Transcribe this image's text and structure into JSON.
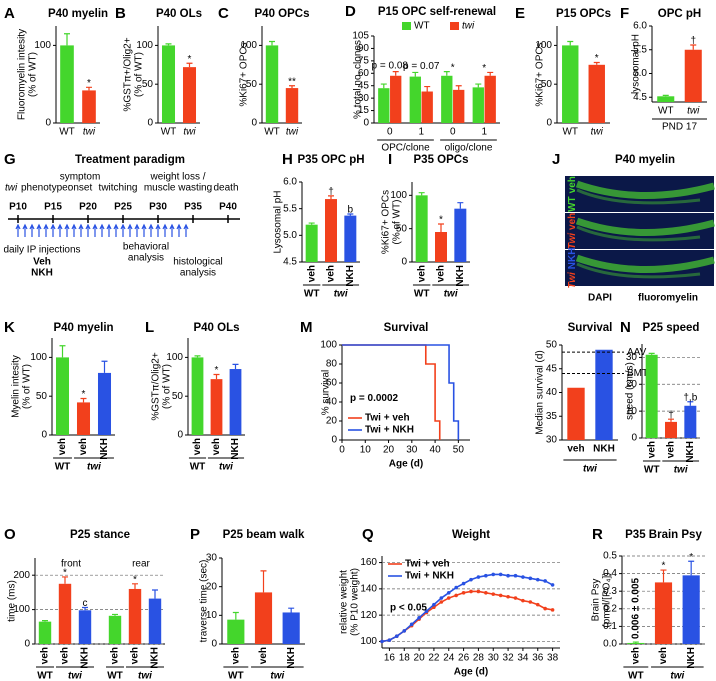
{
  "chart_data": [
    {
      "panel": "A",
      "type": "bar",
      "title": "P40 myelin",
      "ylabel": [
        "Fluoromyelin intesity",
        "(% of WT)"
      ],
      "categories": [
        "WT",
        "twi"
      ],
      "values": [
        100,
        42
      ],
      "errors": [
        15,
        4
      ],
      "colors": [
        "#44d62c",
        "#f2401c"
      ],
      "ylim": [
        0,
        125
      ],
      "yticks": [
        0,
        100
      ],
      "markers": [
        null,
        "*"
      ]
    },
    {
      "panel": "B",
      "type": "bar",
      "title": "P40 OLs",
      "ylabel": [
        "%GSTπ+/Olig2+",
        "(% of WT)"
      ],
      "categories": [
        "WT",
        "twi"
      ],
      "values": [
        100,
        72
      ],
      "errors": [
        2,
        5
      ],
      "colors": [
        "#44d62c",
        "#f2401c"
      ],
      "ylim": [
        0,
        125
      ],
      "yticks": [
        0,
        50,
        100
      ],
      "markers": [
        null,
        "*"
      ]
    },
    {
      "panel": "C",
      "type": "bar",
      "title": "P40 OPCs",
      "ylabel": [
        "%Ki67+ OPCs"
      ],
      "categories": [
        "WT",
        "twi"
      ],
      "values": [
        100,
        45
      ],
      "errors": [
        5,
        3
      ],
      "colors": [
        "#44d62c",
        "#f2401c"
      ],
      "ylim": [
        0,
        125
      ],
      "yticks": [
        0,
        50,
        100
      ],
      "markers": [
        null,
        "**"
      ]
    },
    {
      "panel": "D",
      "type": "bar",
      "title": "P15 OPC self-renewal",
      "ylabel": [
        "% total no. clones"
      ],
      "categories": [
        "0",
        "1",
        "0",
        "1"
      ],
      "supergroups": [
        "OPC/clone",
        "oligo/clone"
      ],
      "series": [
        {
          "name": "WT",
          "color": "#44d62c",
          "values": [
            42,
            56,
            57,
            43
          ],
          "errors": [
            5,
            5,
            5,
            4
          ]
        },
        {
          "name": "twi",
          "color": "#f2401c",
          "values": [
            57,
            38,
            40,
            57
          ],
          "errors": [
            5,
            6,
            5,
            4
          ]
        }
      ],
      "ylim": [
        0,
        105
      ],
      "yticks": [
        0,
        15,
        30,
        45,
        60,
        75,
        90,
        105
      ],
      "markers": [
        "p = 0.08",
        "p = 0.07",
        "*",
        "*"
      ]
    },
    {
      "panel": "E",
      "type": "bar",
      "title": "P15 OPCs",
      "ylabel": [
        "%Ki67+ OPCs"
      ],
      "categories": [
        "WT",
        "twi"
      ],
      "values": [
        100,
        75
      ],
      "errors": [
        5,
        3
      ],
      "colors": [
        "#44d62c",
        "#f2401c"
      ],
      "ylim": [
        0,
        125
      ],
      "yticks": [
        0,
        50,
        100
      ],
      "markers": [
        null,
        "*"
      ]
    },
    {
      "panel": "F",
      "type": "bar",
      "title": "OPC pH",
      "ylabel": [
        "lysosomal pH"
      ],
      "xlabel": "PND 17",
      "categories": [
        "WT",
        "twi"
      ],
      "values": [
        4.52,
        5.5
      ],
      "errors": [
        0.02,
        0.1
      ],
      "colors": [
        "#44d62c",
        "#f2401c"
      ],
      "ylim": [
        4.4,
        6.0
      ],
      "yticks": [
        4.5,
        {
          "value": 5,
          "label": "5.0"
        },
        5.5,
        {
          "value": 6,
          "label": "6.0"
        }
      ],
      "markers": [
        null,
        "†"
      ]
    },
    {
      "panel": "H",
      "type": "bar",
      "title": "P35 OPC pH",
      "ylabel": [
        "Lysosomal pH"
      ],
      "categories": [
        "veh",
        "veh",
        "NKH"
      ],
      "groups": [
        "WT",
        "twi"
      ],
      "values": [
        5.2,
        5.68,
        5.37
      ],
      "errors": [
        0.03,
        0.06,
        0.03
      ],
      "colors": [
        "#44d62c",
        "#f2401c",
        "#2952e3"
      ],
      "ylim": [
        4.5,
        6.0
      ],
      "yticks": [
        4.5,
        {
          "value": 5,
          "label": "5.0"
        },
        5.5,
        {
          "value": 6,
          "label": "6.0"
        }
      ],
      "markers": [
        null,
        "†",
        "b"
      ]
    },
    {
      "panel": "I",
      "type": "bar",
      "title": "P35 OPCs",
      "ylabel": [
        "%Ki67+ OPCs",
        "(% of WT)"
      ],
      "categories": [
        "veh",
        "veh",
        "NKH"
      ],
      "groups": [
        "WT",
        "twi"
      ],
      "values": [
        100,
        45,
        80
      ],
      "errors": [
        4,
        12,
        9
      ],
      "colors": [
        "#44d62c",
        "#f2401c",
        "#2952e3"
      ],
      "ylim": [
        0,
        120
      ],
      "yticks": [
        0,
        50,
        100
      ],
      "markers": [
        null,
        "*",
        null
      ]
    },
    {
      "panel": "K",
      "type": "bar",
      "title": "P40 myelin",
      "ylabel": [
        "Myelin intesity",
        "(% of WT)"
      ],
      "categories": [
        "veh",
        "veh",
        "NKH"
      ],
      "groups": [
        "WT",
        "twi"
      ],
      "values": [
        100,
        42,
        80
      ],
      "errors": [
        15,
        5,
        15
      ],
      "colors": [
        "#44d62c",
        "#f2401c",
        "#2952e3"
      ],
      "ylim": [
        0,
        125
      ],
      "yticks": [
        0,
        50,
        100
      ],
      "markers": [
        null,
        "*",
        null
      ]
    },
    {
      "panel": "L",
      "type": "bar",
      "title": "P40 OLs",
      "ylabel": [
        "%GSTπ/Olig2+",
        "(% of WT)"
      ],
      "categories": [
        "veh",
        "veh",
        "NKH"
      ],
      "groups": [
        "WT",
        "twi"
      ],
      "values": [
        100,
        72,
        85
      ],
      "errors": [
        2,
        6,
        6
      ],
      "colors": [
        "#44d62c",
        "#f2401c",
        "#2952e3"
      ],
      "ylim": [
        0,
        125
      ],
      "yticks": [
        0,
        50,
        100
      ],
      "markers": [
        null,
        "*",
        null
      ]
    },
    {
      "panel": "M",
      "type": "line",
      "title": "Survival",
      "xlabel": "Age (d)",
      "ylabel": [
        "% survival"
      ],
      "xlim": [
        0,
        55
      ],
      "xticks": [
        0,
        10,
        20,
        30,
        40,
        50
      ],
      "ylim": [
        0,
        100
      ],
      "yticks": [
        0,
        20,
        40,
        60,
        80,
        100
      ],
      "legend": "lower left",
      "annotation": "p = 0.0002",
      "series": [
        {
          "name": "Twi + veh",
          "color": "#f2401c",
          "x": [
            0,
            36,
            36,
            40,
            40,
            42,
            42
          ],
          "values": [
            100,
            100,
            80,
            80,
            20,
            20,
            0
          ]
        },
        {
          "name": "Twi + NKH",
          "color": "#2952e3",
          "x": [
            0,
            46,
            46,
            48,
            48,
            50,
            50
          ],
          "values": [
            100,
            100,
            60,
            60,
            20,
            20,
            0
          ]
        }
      ]
    },
    {
      "type": "bar",
      "title": "Survival",
      "ylabel": [
        "Median survival (d)"
      ],
      "categories": [
        "veh",
        "NKH"
      ],
      "groups": [
        "twi"
      ],
      "values": [
        41,
        49
      ],
      "colors": [
        "#f2401c",
        "#2952e3"
      ],
      "ylim": [
        30,
        50
      ],
      "yticks": [
        30,
        35,
        40,
        45,
        50
      ],
      "ref_lines": [
        {
          "label": "AAV",
          "value": 48.5
        },
        {
          "label": "BMT",
          "value": 44
        }
      ]
    },
    {
      "panel": "N",
      "type": "bar",
      "title": "P25 speed",
      "ylabel": [
        "speed (cm/s)"
      ],
      "categories": [
        "veh",
        "veh",
        "NKH"
      ],
      "groups": [
        "WT",
        "twi"
      ],
      "values": [
        31,
        6,
        12
      ],
      "errors": [
        0.5,
        1,
        1.5
      ],
      "colors": [
        "#44d62c",
        "#f2401c",
        "#2952e3"
      ],
      "ylim": [
        0,
        35
      ],
      "yticks": [
        0,
        10,
        20,
        30
      ],
      "grid": true,
      "markers": [
        null,
        "†",
        "†,b"
      ]
    },
    {
      "panel": "O",
      "type": "bar",
      "title": "P25 stance",
      "ylabel": [
        "time (ms)"
      ],
      "subtitles": [
        "front",
        "rear"
      ],
      "categories": [
        "veh",
        "veh",
        "NKH",
        "veh",
        "veh",
        "NKH"
      ],
      "groups": [
        "WT",
        "twi",
        "WT",
        "twi"
      ],
      "values": [
        65,
        175,
        98,
        82,
        160,
        132
      ],
      "errors": [
        3,
        20,
        8,
        4,
        15,
        25
      ],
      "colors": [
        "#44d62c",
        "#f2401c",
        "#2952e3",
        "#44d62c",
        "#f2401c",
        "#2952e3"
      ],
      "ylim": [
        0,
        250
      ],
      "yticks": [
        0,
        100,
        200
      ],
      "grid": true,
      "markers": [
        null,
        "*",
        "c",
        null,
        "*",
        null
      ]
    },
    {
      "panel": "P",
      "type": "bar",
      "title": "P25 beam walk",
      "ylabel": [
        "traverse time (sec)"
      ],
      "categories": [
        "veh",
        "veh",
        "NKH"
      ],
      "groups": [
        "WT",
        "twi"
      ],
      "values": [
        8.5,
        18,
        11
      ],
      "errors": [
        2.5,
        7.5,
        1.5
      ],
      "colors": [
        "#44d62c",
        "#f2401c",
        "#2952e3"
      ],
      "ylim": [
        0,
        30
      ],
      "yticks": [
        0,
        10,
        20,
        30
      ]
    },
    {
      "panel": "Q",
      "type": "line",
      "title": "Weight",
      "xlabel": "Age (d)",
      "ylabel": [
        "relative weight",
        "(% P10 weight)"
      ],
      "xlim": [
        15,
        39
      ],
      "xticks": [
        16,
        18,
        20,
        22,
        24,
        26,
        28,
        30,
        32,
        34,
        36,
        38
      ],
      "ylim": [
        95,
        165
      ],
      "yticks": [
        100,
        120,
        140,
        160
      ],
      "grid": true,
      "legend": "upper left",
      "annotation": "p < 0.05",
      "point_markers": true,
      "series": [
        {
          "name": "Twi + veh",
          "color": "#f2401c",
          "x": [
            15,
            16,
            17,
            18,
            19,
            20,
            21,
            22,
            23,
            24,
            25,
            26,
            27,
            28,
            29,
            30,
            31,
            32,
            33,
            34,
            35,
            36,
            37,
            38
          ],
          "values": [
            100,
            101,
            104,
            108,
            112,
            117,
            122,
            126,
            130,
            133,
            135,
            137,
            138,
            138,
            137,
            136,
            135,
            134,
            133,
            131,
            130,
            128,
            125,
            124
          ]
        },
        {
          "name": "Twi + NKH",
          "color": "#2952e3",
          "x": [
            15,
            16,
            17,
            18,
            19,
            20,
            21,
            22,
            23,
            24,
            25,
            26,
            27,
            28,
            29,
            30,
            31,
            32,
            33,
            34,
            35,
            36,
            37,
            38
          ],
          "values": [
            100,
            101,
            104,
            108,
            113,
            118,
            123,
            128,
            133,
            137,
            141,
            144,
            147,
            149,
            150,
            151,
            151,
            150,
            150,
            149,
            148,
            147,
            146,
            143
          ]
        }
      ]
    },
    {
      "panel": "R",
      "type": "bar",
      "title": "P35 Brain Psy",
      "ylabel": [
        "Brain Psy",
        "(pmol/[PO₄])"
      ],
      "categories": [
        "veh",
        "veh",
        "NKH"
      ],
      "groups": [
        "WT",
        "twi"
      ],
      "values": [
        0.006,
        0.35,
        0.39
      ],
      "errors": [
        0.005,
        0.07,
        0.08
      ],
      "value_labels": [
        "0.006 ± 0.005",
        null,
        null
      ],
      "colors": [
        "#44d62c",
        "#f2401c",
        "#2952e3"
      ],
      "ylim": [
        0,
        0.5
      ],
      "yticks": [
        {
          "value": 0,
          "label": "0.0"
        },
        0.1,
        0.2,
        0.3,
        0.4,
        0.5
      ],
      "grid": true,
      "markers": [
        null,
        "*",
        "*"
      ]
    }
  ],
  "treatment": {
    "panel": "G",
    "title": "Treatment paradigm",
    "phenotype": [
      "twi",
      "phenotype:"
    ],
    "stages": [
      [
        "symptom",
        "onset"
      ],
      [
        "twitching"
      ],
      [
        "weight loss /",
        "muscle wasting"
      ],
      [
        "death"
      ]
    ],
    "timepoints": [
      "P10",
      "P15",
      "P20",
      "P25",
      "P30",
      "P35",
      "P40"
    ],
    "injections": "daily IP injections",
    "treatments": [
      "Veh",
      "NKH"
    ],
    "analyses": [
      [
        "behavioral",
        "analysis"
      ],
      [
        "histological",
        "analysis"
      ]
    ]
  },
  "image": {
    "panel": "J",
    "title": "P40 myelin",
    "rows": [
      [
        "WT",
        "veh"
      ],
      [
        "Twi",
        "veh"
      ],
      [
        "Twi",
        "NKH"
      ]
    ],
    "stains": [
      "DAPI",
      "fluoromyelin"
    ]
  }
}
